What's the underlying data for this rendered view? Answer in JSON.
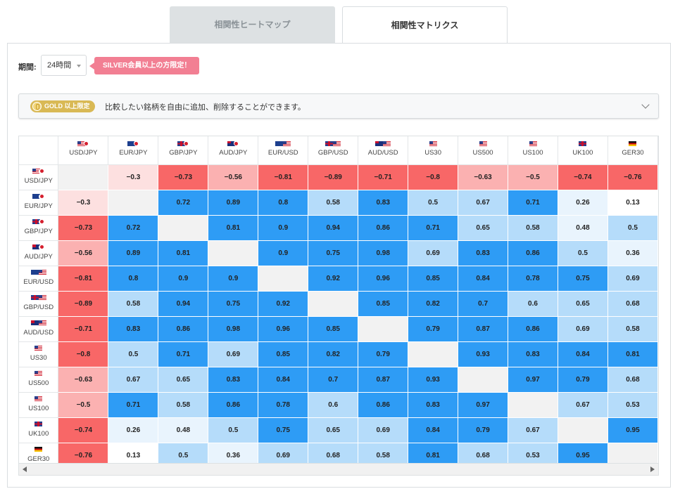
{
  "tabs": [
    {
      "label": "相関性ヒートマップ",
      "active": false
    },
    {
      "label": "相関性マトリクス",
      "active": true
    }
  ],
  "period": {
    "label": "期間:",
    "value": "24時間"
  },
  "membership_badge": "SILVER会員以上の方限定！",
  "notice": {
    "badge": "GOLD 以上限定",
    "text": "比較したい銘柄を自由に追加、削除することができます。"
  },
  "colors": {
    "strong_positive": "#2e9cf5",
    "medium_positive": "#b5dcfa",
    "weak_positive": "#e9f4fd",
    "none": "#ffffff",
    "strong_negative": "#f86767",
    "medium_negative": "#fbb1b1",
    "weak_negative": "#fde0e0",
    "diagonal": "#f2f2f2"
  },
  "symbols": [
    {
      "label": "USD/JPY",
      "flags": [
        "us",
        "jp"
      ]
    },
    {
      "label": "EUR/JPY",
      "flags": [
        "eu",
        "jp"
      ]
    },
    {
      "label": "GBP/JPY",
      "flags": [
        "gb",
        "jp"
      ]
    },
    {
      "label": "AUD/JPY",
      "flags": [
        "au",
        "jp"
      ]
    },
    {
      "label": "EUR/USD",
      "flags": [
        "eu",
        "us"
      ]
    },
    {
      "label": "GBP/USD",
      "flags": [
        "gb",
        "us"
      ]
    },
    {
      "label": "AUD/USD",
      "flags": [
        "au",
        "us"
      ]
    },
    {
      "label": "US30",
      "flags": [
        "us"
      ]
    },
    {
      "label": "US500",
      "flags": [
        "us"
      ]
    },
    {
      "label": "US100",
      "flags": [
        "us"
      ]
    },
    {
      "label": "UK100",
      "flags": [
        "gb"
      ]
    },
    {
      "label": "GER30",
      "flags": [
        "de"
      ]
    }
  ],
  "matrix": [
    [
      null,
      -0.3,
      -0.73,
      -0.56,
      -0.81,
      -0.89,
      -0.71,
      -0.8,
      -0.63,
      -0.5,
      -0.74,
      -0.76
    ],
    [
      -0.3,
      null,
      0.72,
      0.89,
      0.8,
      0.58,
      0.83,
      0.5,
      0.67,
      0.71,
      0.26,
      0.13
    ],
    [
      -0.73,
      0.72,
      null,
      0.81,
      0.9,
      0.94,
      0.86,
      0.71,
      0.65,
      0.58,
      0.48,
      0.5
    ],
    [
      -0.56,
      0.89,
      0.81,
      null,
      0.9,
      0.75,
      0.98,
      0.69,
      0.83,
      0.86,
      0.5,
      0.36
    ],
    [
      -0.81,
      0.8,
      0.9,
      0.9,
      null,
      0.92,
      0.96,
      0.85,
      0.84,
      0.78,
      0.75,
      0.69
    ],
    [
      -0.89,
      0.58,
      0.94,
      0.75,
      0.92,
      null,
      0.85,
      0.82,
      0.7,
      0.6,
      0.65,
      0.68
    ],
    [
      -0.71,
      0.83,
      0.86,
      0.98,
      0.96,
      0.85,
      null,
      0.79,
      0.87,
      0.86,
      0.69,
      0.58
    ],
    [
      -0.8,
      0.5,
      0.71,
      0.69,
      0.85,
      0.82,
      0.79,
      null,
      0.93,
      0.83,
      0.84,
      0.81
    ],
    [
      -0.63,
      0.67,
      0.65,
      0.83,
      0.84,
      0.7,
      0.87,
      0.93,
      null,
      0.97,
      0.79,
      0.68
    ],
    [
      -0.5,
      0.71,
      0.58,
      0.86,
      0.78,
      0.6,
      0.86,
      0.83,
      0.97,
      null,
      0.67,
      0.53
    ],
    [
      -0.74,
      0.26,
      0.48,
      0.5,
      0.75,
      0.65,
      0.69,
      0.84,
      0.79,
      0.67,
      null,
      0.95
    ],
    [
      -0.76,
      0.13,
      0.5,
      0.36,
      0.69,
      0.68,
      0.58,
      0.81,
      0.68,
      0.53,
      0.95,
      null
    ]
  ]
}
